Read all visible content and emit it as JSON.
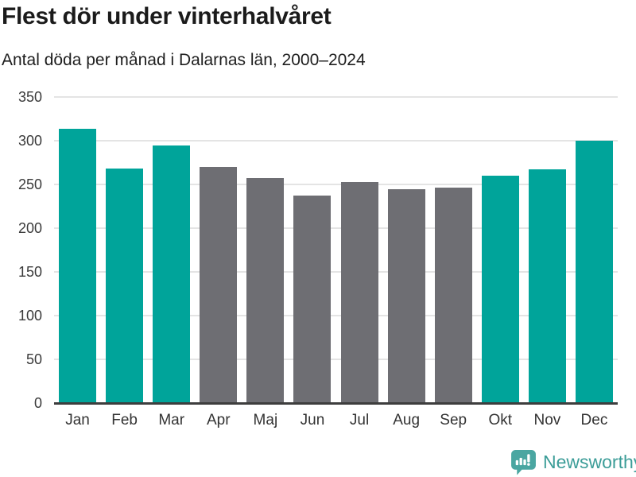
{
  "chart_data": {
    "type": "bar",
    "title": "Flest dör under vinterhalvåret",
    "subtitle": "Antal döda per månad i Dalarnas län, 2000–2024",
    "categories": [
      "Jan",
      "Feb",
      "Mar",
      "Apr",
      "Maj",
      "Jun",
      "Jul",
      "Aug",
      "Sep",
      "Okt",
      "Nov",
      "Dec"
    ],
    "values": [
      314,
      268,
      295,
      270,
      257,
      237,
      253,
      245,
      246,
      260,
      267,
      300
    ],
    "bar_colors": [
      "#00a49a",
      "#00a49a",
      "#00a49a",
      "#6e6e73",
      "#6e6e73",
      "#6e6e73",
      "#6e6e73",
      "#6e6e73",
      "#6e6e73",
      "#00a49a",
      "#00a49a",
      "#00a49a"
    ],
    "xlabel": "",
    "ylabel": "",
    "ylim": [
      0,
      350
    ],
    "yticks": [
      0,
      50,
      100,
      150,
      200,
      250,
      300,
      350
    ],
    "grid": "horizontal",
    "legend": "none"
  },
  "footer": {
    "brand": "Newsworthy"
  },
  "style": {
    "winter_teal": "#00a49a",
    "summer_gray": "#6e6e73",
    "gridline": "#e4e4e4",
    "axis_line": "#3d3d3d",
    "brand_text": "#3c9d98",
    "brand_icon": "#4aa6a1"
  }
}
